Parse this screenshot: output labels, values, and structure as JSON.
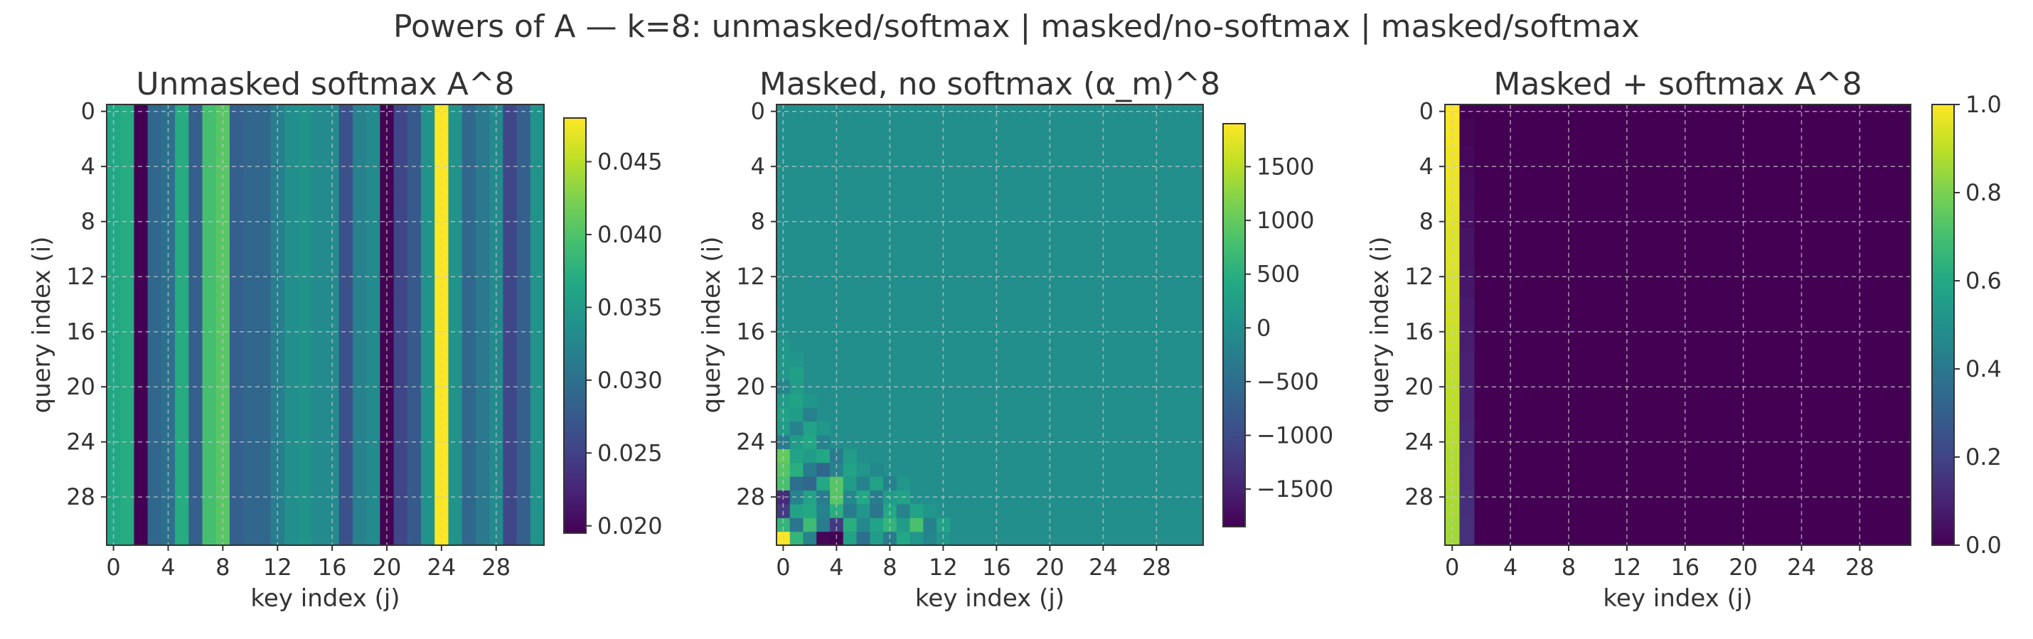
{
  "suptitle": "Powers of A — k=8:  unmasked/softmax  |  masked/no-softmax  |  masked/softmax",
  "chart_data": [
    {
      "type": "heatmap",
      "title": "Unmasked softmax  A^8",
      "xlabel": "key index (j)",
      "ylabel": "query index (i)",
      "n": 32,
      "xticks": [
        0,
        4,
        8,
        12,
        16,
        20,
        24,
        28
      ],
      "yticks": [
        0,
        4,
        8,
        12,
        16,
        20,
        24,
        28
      ],
      "colorbar": {
        "ticks": [
          0.02,
          0.025,
          0.03,
          0.035,
          0.04,
          0.045
        ],
        "tick_labels": [
          "0.020",
          "0.025",
          "0.030",
          "0.035",
          "0.040",
          "0.045"
        ],
        "vmin": 0.0195,
        "vmax": 0.048
      },
      "colormap": "viridis",
      "grid": true,
      "column_values": [
        0.0365,
        0.037,
        0.0195,
        0.029,
        0.03,
        0.037,
        0.028,
        0.0395,
        0.0405,
        0.028,
        0.029,
        0.029,
        0.0315,
        0.0335,
        0.034,
        0.033,
        0.033,
        0.0265,
        0.032,
        0.033,
        0.0195,
        0.0255,
        0.0275,
        0.034,
        0.048,
        0.034,
        0.029,
        0.031,
        0.033,
        0.0255,
        0.028,
        0.034
      ]
    },
    {
      "type": "heatmap",
      "title": "Masked, no softmax  (α_m)^8",
      "xlabel": "key index (j)",
      "ylabel": "query index (i)",
      "n": 32,
      "xticks": [
        0,
        4,
        8,
        12,
        16,
        20,
        24,
        28
      ],
      "yticks": [
        0,
        4,
        8,
        12,
        16,
        20,
        24,
        28
      ],
      "colorbar": {
        "ticks": [
          -1500,
          -1000,
          -500,
          0,
          500,
          1000,
          1500
        ],
        "tick_labels": [
          "−1500",
          "−1000",
          "−500",
          "0",
          "500",
          "1000",
          "1500"
        ],
        "vmin": -1850,
        "vmax": 1900
      },
      "colormap": "viridis",
      "grid": true,
      "background_value": 0,
      "cells": [
        [
          0,
          31,
          1900
        ],
        [
          1,
          31,
          600
        ],
        [
          2,
          31,
          -200
        ],
        [
          3,
          31,
          -1800
        ],
        [
          4,
          31,
          -1850
        ],
        [
          5,
          31,
          300
        ],
        [
          6,
          31,
          -500
        ],
        [
          7,
          31,
          200
        ],
        [
          8,
          31,
          -300
        ],
        [
          9,
          31,
          400
        ],
        [
          10,
          31,
          100
        ],
        [
          11,
          31,
          -150
        ],
        [
          12,
          31,
          100
        ],
        [
          0,
          30,
          600
        ],
        [
          1,
          30,
          -400
        ],
        [
          2,
          30,
          700
        ],
        [
          3,
          30,
          -300
        ],
        [
          4,
          30,
          -1200
        ],
        [
          5,
          30,
          500
        ],
        [
          6,
          30,
          -100
        ],
        [
          7,
          30,
          300
        ],
        [
          8,
          30,
          600
        ],
        [
          9,
          30,
          200
        ],
        [
          10,
          30,
          800
        ],
        [
          11,
          30,
          -200
        ],
        [
          12,
          30,
          300
        ],
        [
          0,
          29,
          -1200
        ],
        [
          1,
          29,
          300
        ],
        [
          2,
          29,
          400
        ],
        [
          3,
          29,
          -200
        ],
        [
          4,
          29,
          500
        ],
        [
          5,
          29,
          -300
        ],
        [
          6,
          29,
          100
        ],
        [
          7,
          29,
          -400
        ],
        [
          8,
          29,
          400
        ],
        [
          9,
          29,
          -200
        ],
        [
          10,
          29,
          300
        ],
        [
          11,
          29,
          100
        ],
        [
          0,
          28,
          -1400
        ],
        [
          1,
          28,
          -200
        ],
        [
          2,
          28,
          300
        ],
        [
          3,
          28,
          -300
        ],
        [
          4,
          28,
          900
        ],
        [
          5,
          28,
          -100
        ],
        [
          6,
          28,
          400
        ],
        [
          7,
          28,
          -300
        ],
        [
          8,
          28,
          200
        ],
        [
          9,
          28,
          300
        ],
        [
          0,
          27,
          800
        ],
        [
          1,
          27,
          -500
        ],
        [
          2,
          27,
          -600
        ],
        [
          3,
          27,
          400
        ],
        [
          4,
          27,
          900
        ],
        [
          5,
          27,
          200
        ],
        [
          6,
          27,
          -200
        ],
        [
          7,
          27,
          300
        ],
        [
          8,
          27,
          -200
        ],
        [
          9,
          27,
          100
        ],
        [
          0,
          26,
          900
        ],
        [
          1,
          26,
          500
        ],
        [
          2,
          26,
          -300
        ],
        [
          3,
          26,
          -600
        ],
        [
          4,
          26,
          -200
        ],
        [
          5,
          26,
          300
        ],
        [
          6,
          26,
          100
        ],
        [
          7,
          26,
          -100
        ],
        [
          0,
          25,
          1000
        ],
        [
          1,
          25,
          300
        ],
        [
          2,
          25,
          200
        ],
        [
          3,
          25,
          400
        ],
        [
          4,
          25,
          -300
        ],
        [
          5,
          25,
          200
        ],
        [
          0,
          24,
          -300
        ],
        [
          1,
          24,
          200
        ],
        [
          2,
          24,
          400
        ],
        [
          3,
          24,
          -200
        ],
        [
          0,
          23,
          200
        ],
        [
          1,
          23,
          -200
        ],
        [
          2,
          23,
          300
        ],
        [
          3,
          23,
          100
        ],
        [
          0,
          22,
          300
        ],
        [
          1,
          22,
          200
        ],
        [
          2,
          22,
          -200
        ],
        [
          0,
          21,
          200
        ],
        [
          1,
          21,
          300
        ],
        [
          2,
          21,
          100
        ],
        [
          0,
          20,
          -150
        ],
        [
          1,
          20,
          200
        ],
        [
          0,
          19,
          100
        ],
        [
          1,
          19,
          250
        ],
        [
          0,
          18,
          150
        ],
        [
          1,
          18,
          100
        ],
        [
          0,
          17,
          100
        ]
      ]
    },
    {
      "type": "heatmap",
      "title": "Masked + softmax  A^8",
      "xlabel": "key index (j)",
      "ylabel": "query index (i)",
      "n": 32,
      "xticks": [
        0,
        4,
        8,
        12,
        16,
        20,
        24,
        28
      ],
      "yticks": [
        0,
        4,
        8,
        12,
        16,
        20,
        24,
        28
      ],
      "colorbar": {
        "ticks": [
          0.0,
          0.2,
          0.4,
          0.6,
          0.8,
          1.0
        ],
        "tick_labels": [
          "0.0",
          "0.2",
          "0.4",
          "0.6",
          "0.8",
          "1.0"
        ],
        "vmin": 0.0,
        "vmax": 1.0
      },
      "colormap": "viridis",
      "grid": true,
      "background_value": 0,
      "column0_values": [
        1.0,
        0.99,
        0.99,
        0.98,
        0.98,
        0.97,
        0.97,
        0.96,
        0.96,
        0.95,
        0.95,
        0.95,
        0.94,
        0.94,
        0.93,
        0.93,
        0.92,
        0.92,
        0.91,
        0.91,
        0.9,
        0.9,
        0.9,
        0.89,
        0.89,
        0.88,
        0.88,
        0.88,
        0.87,
        0.87,
        0.86,
        0.86
      ],
      "column1_values": [
        0.0,
        0.01,
        0.01,
        0.02,
        0.02,
        0.03,
        0.03,
        0.04,
        0.04,
        0.05,
        0.05,
        0.05,
        0.06,
        0.06,
        0.07,
        0.07,
        0.08,
        0.08,
        0.09,
        0.09,
        0.1,
        0.1,
        0.1,
        0.11,
        0.11,
        0.12,
        0.12,
        0.12,
        0.13,
        0.13,
        0.14,
        0.14
      ]
    }
  ]
}
